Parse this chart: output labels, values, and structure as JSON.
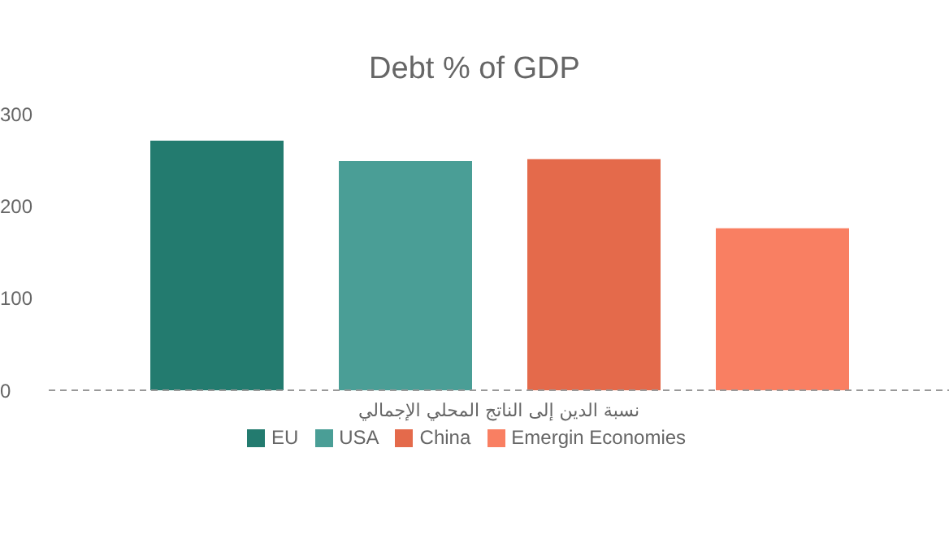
{
  "chart_data": {
    "type": "bar",
    "title": "Debt % of GDP",
    "categories": [
      "نسبة الدين إلى الناتج المحلي الإجمالي"
    ],
    "series": [
      {
        "name": "EU",
        "color": "#237b6f",
        "values": [
          270
        ]
      },
      {
        "name": "USA",
        "color": "#4a9e96",
        "values": [
          248
        ]
      },
      {
        "name": "China",
        "color": "#e46a4b",
        "values": [
          250
        ]
      },
      {
        "name": "Emergin Economies",
        "color": "#f97f62",
        "values": [
          175
        ]
      }
    ],
    "ylim": [
      0,
      300
    ],
    "yticks": [
      0,
      100,
      200,
      300
    ],
    "legend": "bottom"
  }
}
